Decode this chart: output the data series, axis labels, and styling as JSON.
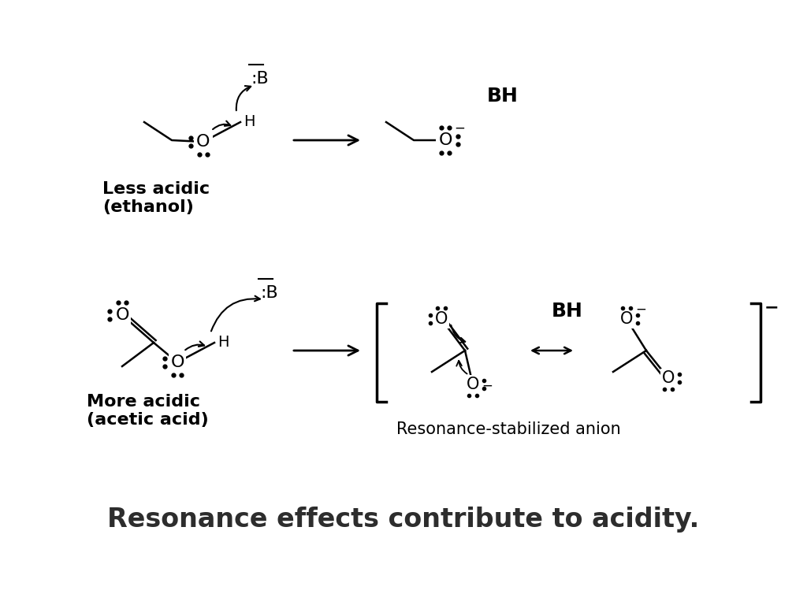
{
  "bg_color": "#ffffff",
  "title_text": "Resonance effects contribute to acidity.",
  "title_fontsize": 24,
  "title_color": "#2d2d2d",
  "label_less_acidic": "Less acidic\n(ethanol)",
  "label_more_acidic": "More acidic\n(acetic acid)",
  "label_resonance": "Resonance-stabilized anion",
  "label_BH_top": "BH",
  "label_BH_bottom": "BH"
}
